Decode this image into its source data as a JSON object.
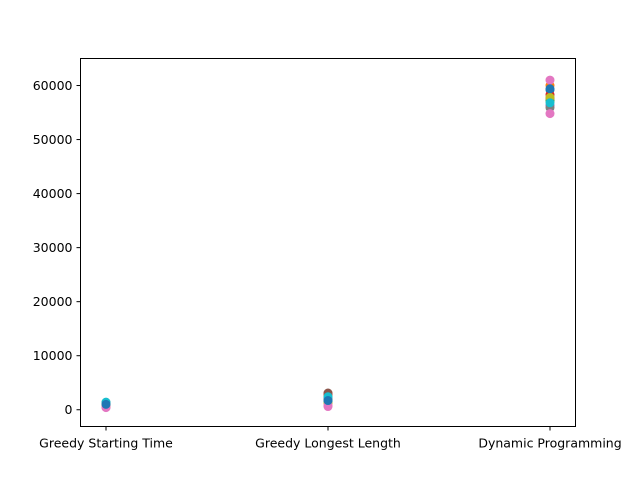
{
  "chart_data": {
    "type": "scatter",
    "title": "",
    "xlabel": "",
    "ylabel": "",
    "categories": [
      "Greedy Starting Time",
      "Greedy Longest Length",
      "Dynamic Programming"
    ],
    "ylim": [
      -3100,
      65000
    ],
    "yticks": [
      0,
      10000,
      20000,
      30000,
      40000,
      50000,
      60000
    ],
    "grid": false,
    "legend": "none",
    "series": [
      {
        "color": "#1f77b4",
        "values": [
          800,
          1500,
          59200
        ]
      },
      {
        "color": "#ff7f0e",
        "values": [
          1000,
          2500,
          60000
        ]
      },
      {
        "color": "#2ca02c",
        "values": [
          600,
          1800,
          57200
        ]
      },
      {
        "color": "#d62728",
        "values": [
          1200,
          2900,
          58300
        ]
      },
      {
        "color": "#9467bd",
        "values": [
          900,
          2200,
          56300
        ]
      },
      {
        "color": "#8c564b",
        "values": [
          1300,
          3100,
          57700
        ]
      },
      {
        "color": "#e377c2",
        "values": [
          400,
          600,
          61000
        ]
      },
      {
        "color": "#7f7f7f",
        "values": [
          1100,
          2000,
          55900
        ]
      },
      {
        "color": "#bcbd22",
        "values": [
          700,
          1200,
          57800
        ]
      },
      {
        "color": "#17becf",
        "values": [
          1400,
          2400,
          56800
        ]
      },
      {
        "color": "#e377c2",
        "values": [
          500,
          800,
          54800
        ]
      },
      {
        "color": "#1f77b4",
        "values": [
          1000,
          1700,
          59400
        ]
      }
    ]
  }
}
